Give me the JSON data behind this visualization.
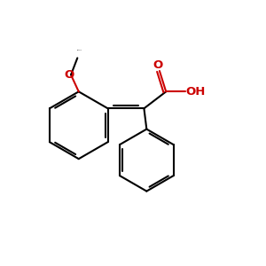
{
  "bg_color": "#ffffff",
  "bond_color": "#000000",
  "hetero_color": "#cc0000",
  "line_width": 1.5,
  "fig_size": [
    3.0,
    3.0
  ],
  "dpi": 100,
  "xlim": [
    0,
    10
  ],
  "ylim": [
    0,
    10
  ]
}
